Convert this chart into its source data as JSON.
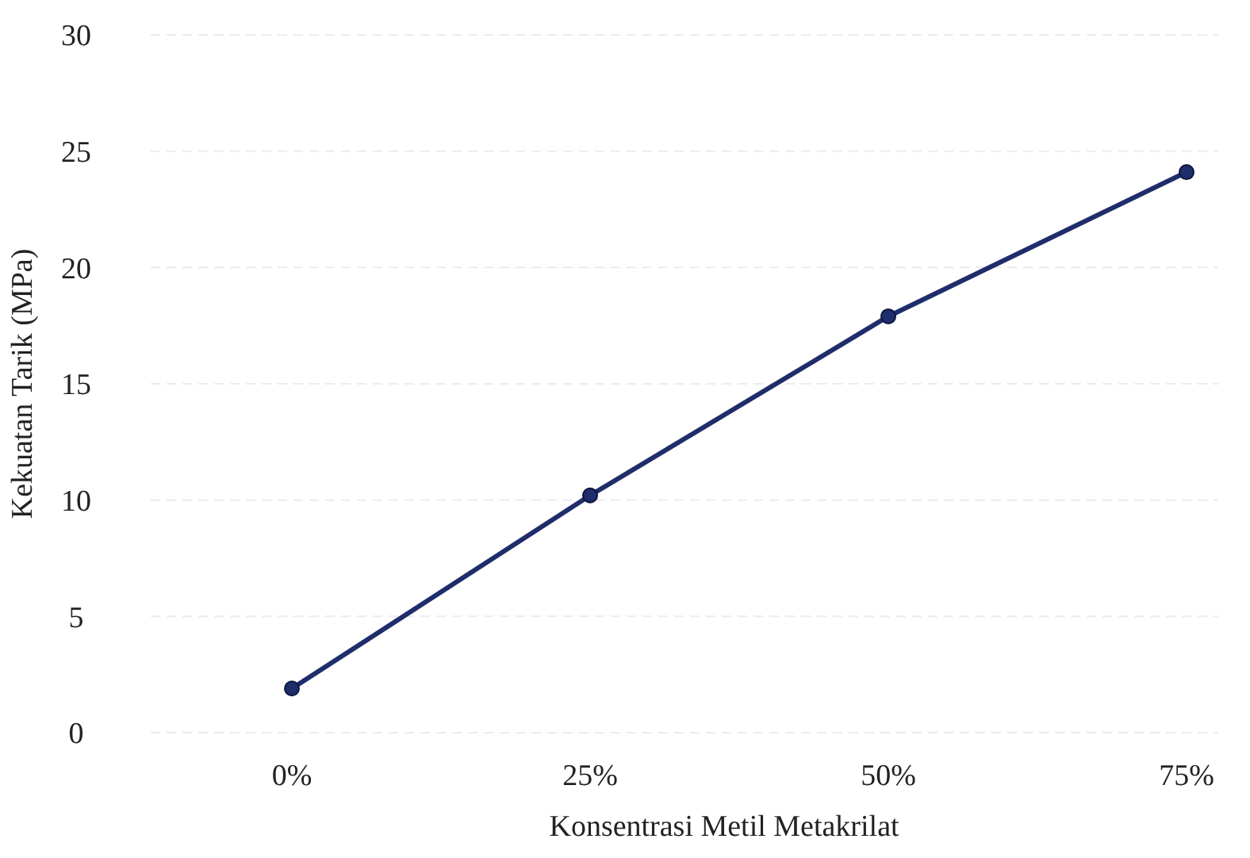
{
  "chart_data": {
    "type": "line",
    "xlabel": "Konsentrasi Metil Metakrilat",
    "ylabel": "Kekuatan Tarik (MPa)",
    "categories": [
      "0%",
      "25%",
      "50%",
      "75%"
    ],
    "series": [
      {
        "color": "#1f2d6b",
        "values": [
          1.9,
          10.2,
          17.9,
          24.1
        ]
      }
    ],
    "ylim": [
      0,
      30
    ],
    "yticks": [
      0,
      5,
      10,
      15,
      20,
      25,
      30
    ],
    "grid": "y",
    "marker": "circle",
    "line_style": "solid"
  }
}
